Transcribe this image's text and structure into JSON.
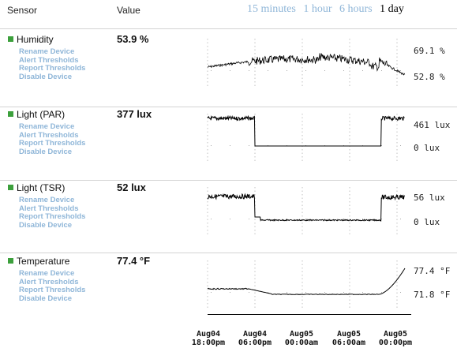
{
  "header": {
    "sensor_label": "Sensor",
    "value_label": "Value",
    "ranges": [
      {
        "label": "15 minutes",
        "selected": false
      },
      {
        "label": "1 hour",
        "selected": false
      },
      {
        "label": "6 hours",
        "selected": false
      },
      {
        "label": "1 day",
        "selected": true
      }
    ]
  },
  "actions": [
    "Rename Device",
    "Alert Thresholds",
    "Report Thresholds",
    "Disable Device"
  ],
  "sensors": [
    {
      "name": "Humidity",
      "value": "53.9 %",
      "max_label": "69.1 %",
      "min_label": "52.8 %",
      "ymax": 69.1,
      "ymin": 52.8
    },
    {
      "name": "Light (PAR)",
      "value": "377 lux",
      "max_label": "461 lux",
      "min_label": "0 lux",
      "ymax": 461,
      "ymin": 0
    },
    {
      "name": "Light (TSR)",
      "value": "52 lux",
      "max_label": "56 lux",
      "min_label": "0 lux",
      "ymax": 56,
      "ymin": 0
    },
    {
      "name": "Temperature",
      "value": "77.4 °F",
      "max_label": "77.4 °F",
      "min_label": "71.8 °F",
      "ymax": 77.4,
      "ymin": 71.8
    }
  ],
  "x_axis": {
    "ticks": [
      {
        "line1": "Aug04",
        "line2": "18:00pm"
      },
      {
        "line1": "Aug04",
        "line2": "06:00pm"
      },
      {
        "line1": "Aug05",
        "line2": "00:00am"
      },
      {
        "line1": "Aug05",
        "line2": "06:00am"
      },
      {
        "line1": "Aug05",
        "line2": "00:00pm"
      }
    ]
  },
  "colors": {
    "link": "#8fb6d8",
    "indicator": "#3ca03c",
    "selected": "#000000"
  }
}
